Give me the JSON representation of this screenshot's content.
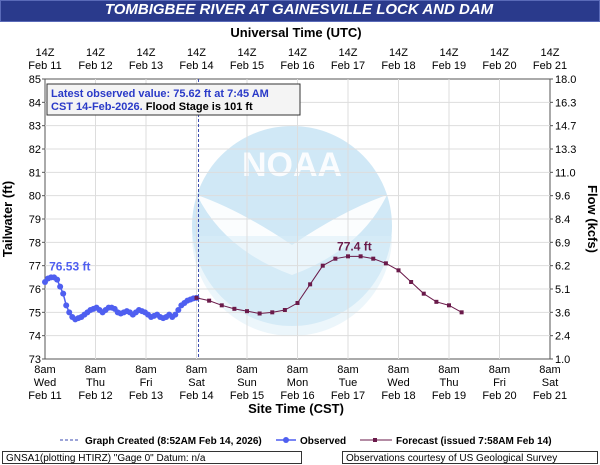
{
  "title": "TOMBIGBEE RIVER AT GAINESVILLE LOCK AND DAM",
  "top_axis_title": "Universal Time (UTC)",
  "bottom_axis_title": "Site Time (CST)",
  "y_left_label": "Tailwater (ft)",
  "y_right_label": "Flow (kcfs)",
  "info_box": {
    "line1": "Latest observed value: 75.62 ft at 7:45 AM",
    "line2a": "CST 14-Feb-2026.",
    "line2b": " Flood Stage is 101 ft"
  },
  "legend": {
    "created": "Graph Created (8:52AM Feb 14, 2026)",
    "observed": "Observed",
    "forecast": "Forecast (issued 7:58AM Feb 14)"
  },
  "footer": {
    "left": "GNSA1(plotting HTIRZ) \"Gage 0\" Datum: n/a",
    "right": "Observations courtesy of US Geological Survey"
  },
  "colors": {
    "title_bg": "#2a3a8c",
    "observed": "#4f5ff0",
    "forecast": "#6a1a4a",
    "created_line": "#3a4ab0",
    "info_text": "#2a3ac8",
    "noaa_logo": "#a9d6ef"
  },
  "chart_data": {
    "type": "line",
    "ylim_left": [
      73,
      85
    ],
    "left_ticks": [
      "73",
      "74",
      "75",
      "76",
      "77",
      "78",
      "79",
      "80",
      "81",
      "82",
      "83",
      "84",
      "85"
    ],
    "right_ticks": [
      "1.0",
      "2.4",
      "3.6",
      "5.1",
      "6.2",
      "6.9",
      "8.4",
      "9.6",
      "11.0",
      "13.3",
      "14.7",
      "16.3",
      "18.0"
    ],
    "top_ticks": [
      [
        "14Z",
        "Feb 11"
      ],
      [
        "14Z",
        "Feb 12"
      ],
      [
        "14Z",
        "Feb 13"
      ],
      [
        "14Z",
        "Feb 14"
      ],
      [
        "14Z",
        "Feb 15"
      ],
      [
        "14Z",
        "Feb 16"
      ],
      [
        "14Z",
        "Feb 17"
      ],
      [
        "14Z",
        "Feb 18"
      ],
      [
        "14Z",
        "Feb 19"
      ],
      [
        "14Z",
        "Feb 20"
      ],
      [
        "14Z",
        "Feb 21"
      ]
    ],
    "bottom_ticks": [
      [
        "8am",
        "Wed",
        "Feb 11"
      ],
      [
        "8am",
        "Thu",
        "Feb 12"
      ],
      [
        "8am",
        "Fri",
        "Feb 13"
      ],
      [
        "8am",
        "Sat",
        "Feb 14"
      ],
      [
        "8am",
        "Sun",
        "Feb 15"
      ],
      [
        "8am",
        "Mon",
        "Feb 16"
      ],
      [
        "8am",
        "Tue",
        "Feb 17"
      ],
      [
        "8am",
        "Wed",
        "Feb 18"
      ],
      [
        "8am",
        "Thu",
        "Feb 19"
      ],
      [
        "8am",
        "Fri",
        "Feb 20"
      ],
      [
        "8am",
        "Sat",
        "Feb 21"
      ]
    ],
    "x_unit": "days since 8am CST Feb 11",
    "created_x": 3.04,
    "observed": {
      "name": "Observed",
      "x": [
        0.0,
        0.06,
        0.12,
        0.18,
        0.24,
        0.3,
        0.36,
        0.42,
        0.48,
        0.54,
        0.6,
        0.66,
        0.72,
        0.78,
        0.84,
        0.9,
        0.96,
        1.02,
        1.08,
        1.14,
        1.2,
        1.26,
        1.32,
        1.38,
        1.44,
        1.5,
        1.56,
        1.62,
        1.68,
        1.74,
        1.8,
        1.86,
        1.92,
        1.98,
        2.04,
        2.1,
        2.16,
        2.22,
        2.28,
        2.34,
        2.4,
        2.46,
        2.52,
        2.58,
        2.64,
        2.7,
        2.76,
        2.82,
        2.88,
        2.94,
        3.0
      ],
      "y": [
        76.3,
        76.45,
        76.5,
        76.5,
        76.4,
        76.1,
        75.8,
        75.3,
        75.0,
        74.8,
        74.7,
        74.75,
        74.8,
        74.9,
        75.0,
        75.1,
        75.15,
        75.2,
        75.1,
        75.0,
        75.1,
        75.2,
        75.2,
        75.15,
        75.0,
        74.95,
        75.0,
        75.05,
        75.0,
        74.9,
        75.0,
        75.1,
        75.05,
        75.0,
        74.9,
        74.8,
        74.85,
        74.9,
        74.8,
        74.75,
        74.8,
        74.9,
        74.8,
        74.9,
        75.1,
        75.3,
        75.4,
        75.5,
        75.55,
        75.6,
        75.62
      ],
      "peak_label": "76.53 ft",
      "peak_x": 0.2,
      "peak_y": 76.53
    },
    "forecast": {
      "name": "Forecast (issued 7:58AM Feb 14)",
      "x": [
        3.0,
        3.25,
        3.5,
        3.75,
        4.0,
        4.25,
        4.5,
        4.75,
        5.0,
        5.25,
        5.5,
        5.75,
        6.0,
        6.25,
        6.5,
        6.75,
        7.0,
        7.25,
        7.5,
        7.75,
        8.0,
        8.25
      ],
      "y": [
        75.62,
        75.5,
        75.3,
        75.15,
        75.05,
        74.95,
        75.0,
        75.1,
        75.4,
        76.2,
        77.0,
        77.3,
        77.4,
        77.4,
        77.3,
        77.1,
        76.8,
        76.3,
        75.8,
        75.45,
        75.3,
        75.0
      ],
      "peak_label": "77.4 ft",
      "peak_x": 6.1,
      "peak_y": 77.4
    }
  }
}
